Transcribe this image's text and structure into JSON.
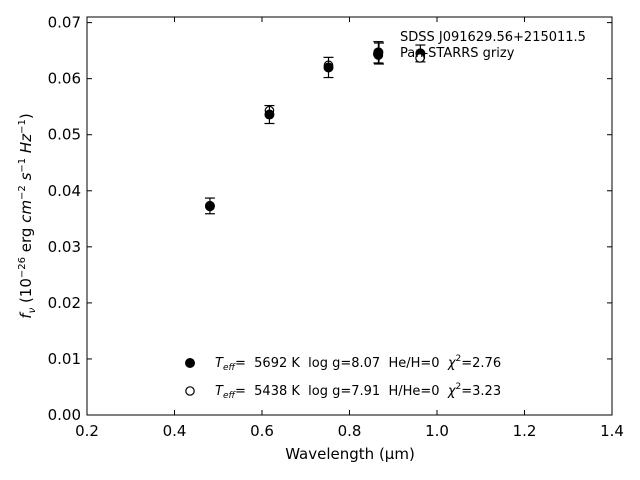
{
  "chart_data": {
    "type": "scatter",
    "xlabel": "Wavelength (μm)",
    "ylabel": "f_ν (10^-26 erg cm^-2 s^-1 Hz^-1)",
    "xlim": [
      0.2,
      1.4
    ],
    "ylim": [
      0.0,
      0.071
    ],
    "xticks": [
      "0.2",
      "0.4",
      "0.6",
      "0.8",
      "1.0",
      "1.2",
      "1.4"
    ],
    "yticks": [
      "0.00",
      "0.01",
      "0.02",
      "0.03",
      "0.04",
      "0.05",
      "0.06",
      "0.07"
    ],
    "grid": false,
    "legend_position": "top-right",
    "series": [
      {
        "name": "SDSS J091629.56+215011.5",
        "marker": "filled-circle",
        "with_errorbars": true,
        "x": [
          0.481,
          0.617,
          0.752,
          0.866,
          0.962
        ],
        "y": [
          0.0373,
          0.0536,
          0.062,
          0.0647,
          0.0645
        ],
        "yerr": [
          0.0014,
          0.0016,
          0.0018,
          0.0019,
          0.0015
        ]
      },
      {
        "name": "Pan-STARRS grizy",
        "marker": "open-circle",
        "with_errorbars": false,
        "x": [
          0.481,
          0.617,
          0.752,
          0.866,
          0.962
        ],
        "y": [
          0.0372,
          0.0543,
          0.0624,
          0.0642,
          0.0638
        ]
      }
    ],
    "fits": [
      {
        "marker": "filled-circle",
        "teff_label": "T",
        "teff_sub": "eff",
        "text_a": "=  5692 K  log g=8.07  He/H=0  ",
        "chi_label": "χ",
        "chi_sup": "2",
        "text_b": "=2.76"
      },
      {
        "marker": "open-circle",
        "teff_label": "T",
        "teff_sub": "eff",
        "text_a": "=  5438 K  log g=7.91  H/He=0  ",
        "chi_label": "χ",
        "chi_sup": "2",
        "text_b": "=3.23"
      }
    ]
  }
}
